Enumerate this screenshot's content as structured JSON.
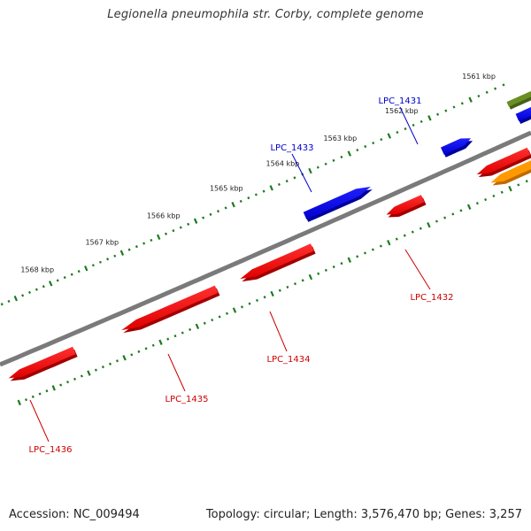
{
  "title": "Legionella pneumophila str. Corby, complete genome",
  "footer": {
    "accession": "Accession: NC_009494",
    "summary": "Topology: circular; Length: 3,576,470 bp; Genes: 3,257"
  },
  "colors": {
    "backbone": "#7a7a7a",
    "tick": "#1e7a1e",
    "forward_gene": "#0000ee",
    "reverse_gene": "#ee0000",
    "forward_label": "#0000cc",
    "reverse_label": "#cc0000",
    "orange_gene": "#ff9900",
    "olive_gene": "#6b8e23"
  },
  "scale": {
    "ticks": [
      {
        "label": "1561 kbp",
        "pos_kbp": 1561
      },
      {
        "label": "1562 kbp",
        "pos_kbp": 1562
      },
      {
        "label": "1563 kbp",
        "pos_kbp": 1563
      },
      {
        "label": "1564 kbp",
        "pos_kbp": 1564
      },
      {
        "label": "1565 kbp",
        "pos_kbp": 1565
      },
      {
        "label": "1566 kbp",
        "pos_kbp": 1566
      },
      {
        "label": "1567 kbp",
        "pos_kbp": 1567
      },
      {
        "label": "1568 kbp",
        "pos_kbp": 1568
      }
    ]
  },
  "genes": [
    {
      "name": "LPC_1431",
      "strand": "forward",
      "color": "blue"
    },
    {
      "name": "LPC_1432",
      "strand": "reverse",
      "color": "red"
    },
    {
      "name": "LPC_1433",
      "strand": "forward",
      "color": "blue"
    },
    {
      "name": "LPC_1434",
      "strand": "reverse",
      "color": "red"
    },
    {
      "name": "LPC_1435",
      "strand": "reverse",
      "color": "red"
    },
    {
      "name": "LPC_1436",
      "strand": "reverse",
      "color": "red"
    }
  ]
}
